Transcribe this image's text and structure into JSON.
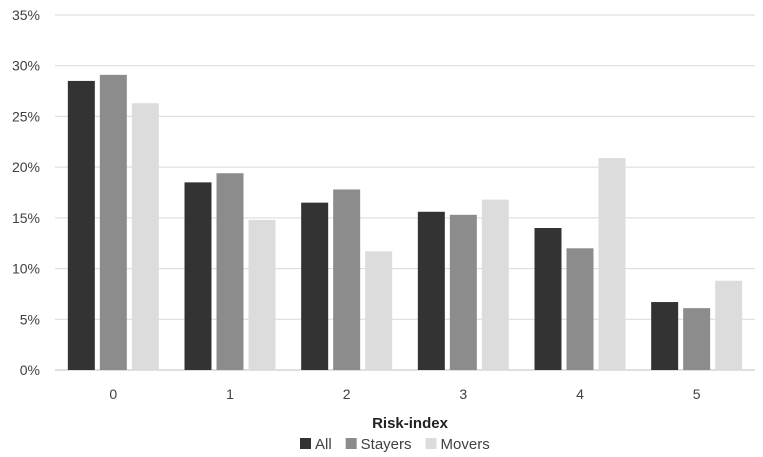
{
  "chart_data": {
    "type": "bar",
    "title": "",
    "xlabel": "Risk-index",
    "ylabel": "",
    "categories": [
      "0",
      "1",
      "2",
      "3",
      "4",
      "5"
    ],
    "series": [
      {
        "name": "All",
        "color": "#333333",
        "values": [
          28.5,
          18.5,
          16.5,
          15.6,
          14.0,
          6.7
        ]
      },
      {
        "name": "Stayers",
        "color": "#8c8c8c",
        "values": [
          29.1,
          19.4,
          17.8,
          15.3,
          12.0,
          6.1
        ]
      },
      {
        "name": "Movers",
        "color": "#dcdcdc",
        "values": [
          26.3,
          14.8,
          11.7,
          16.8,
          20.9,
          8.8
        ]
      }
    ],
    "ylim": [
      0,
      35
    ],
    "yticks": [
      "0%",
      "5%",
      "10%",
      "15%",
      "20%",
      "25%",
      "30%",
      "35%"
    ],
    "grid": true,
    "legend_position": "bottom"
  }
}
